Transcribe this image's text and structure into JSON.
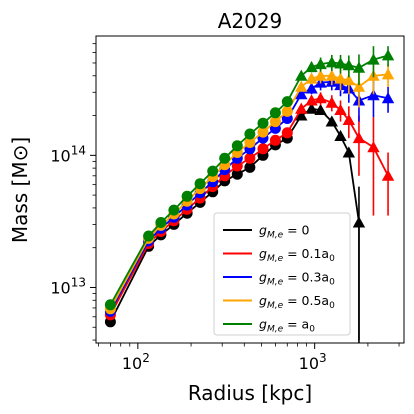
{
  "chart_data": {
    "type": "line",
    "title": "A2029",
    "xlabel": "Radius [kpc]",
    "ylabel": "Mass [M⊙]",
    "x_scale": "log",
    "y_scale": "log",
    "xlim": [
      58,
      3200
    ],
    "ylim": [
      3800000000000.0,
      800000000000000.0
    ],
    "x_ticks": [
      {
        "value": 100,
        "base": "10",
        "exp": "2"
      },
      {
        "value": 1000,
        "base": "10",
        "exp": "3"
      }
    ],
    "y_ticks": [
      {
        "value": 10000000000000.0,
        "base": "10",
        "exp": "13"
      },
      {
        "value": 100000000000000.0,
        "base": "10",
        "exp": "14"
      }
    ],
    "legend_position": "lower-right",
    "grid": false,
    "series": [
      {
        "name": "g_{M,e} = 0",
        "legend_main": "g",
        "legend_sub": "M,e",
        "legend_rest": " = 0",
        "color": "#000000",
        "x": [
          70,
          115,
          135,
          160,
          190,
          225,
          265,
          310,
          365,
          430,
          510,
          600,
          700
        ],
        "y": [
          5500000000000.0,
          20500000000000.0,
          25000000000000.0,
          30000000000000.0,
          36500000000000.0,
          44000000000000.0,
          53000000000000.0,
          64000000000000.0,
          72000000000000.0,
          81000000000000.0,
          100000000000000.0,
          120000000000000.0,
          135000000000000.0
        ],
        "y_err": [
          0,
          0,
          0,
          0,
          0,
          0,
          0,
          0,
          0,
          0,
          0,
          0,
          0
        ],
        "x2": [
          840,
          960,
          1080,
          1250,
          1400,
          1560,
          1780
        ],
        "y2": [
          200000000000000.0,
          225000000000000.0,
          220000000000000.0,
          180000000000000.0,
          140000000000000.0,
          105000000000000.0,
          31000000000000.0
        ],
        "y2_err": [
          0,
          0,
          0,
          0,
          0,
          0,
          27000000000000.0
        ]
      },
      {
        "name": "g_{M,e} = 0.1a_0",
        "legend_main": "g",
        "legend_sub": "M,e",
        "legend_rest": " = 0.1a",
        "legend_sub2": "0",
        "color": "#ff0000",
        "x": [
          70,
          115,
          135,
          160,
          190,
          225,
          265,
          310,
          365,
          430,
          510,
          600,
          700
        ],
        "y": [
          6200000000000.0,
          21500000000000.0,
          26500000000000.0,
          32000000000000.0,
          39000000000000.0,
          47500000000000.0,
          58000000000000.0,
          70000000000000.0,
          83000000000000.0,
          95000000000000.0,
          112000000000000.0,
          130000000000000.0,
          148000000000000.0
        ],
        "y_err": [
          0,
          0,
          0,
          0,
          0,
          0,
          0,
          0,
          0,
          0,
          0,
          0,
          0
        ],
        "x2": [
          840,
          960,
          1080,
          1250,
          1400,
          1560,
          1780,
          2150,
          2600
        ],
        "y2": [
          225000000000000.0,
          260000000000000.0,
          270000000000000.0,
          250000000000000.0,
          220000000000000.0,
          185000000000000.0,
          135000000000000.0,
          115000000000000.0,
          70000000000000.0
        ],
        "y2_err": [
          0,
          20000000000000.0,
          30000000000000.0,
          35000000000000.0,
          40000000000000.0,
          50000000000000.0,
          65000000000000.0,
          80000000000000.0,
          35000000000000.0
        ]
      },
      {
        "name": "g_{M,e} = 0.3a_0",
        "legend_main": "g",
        "legend_sub": "M,e",
        "legend_rest": " = 0.3a",
        "legend_sub2": "0",
        "color": "#0000ff",
        "x": [
          70,
          115,
          135,
          160,
          190,
          225,
          265,
          310,
          365,
          430,
          510,
          600,
          700
        ],
        "y": [
          6600000000000.0,
          22500000000000.0,
          28000000000000.0,
          34000000000000.0,
          42000000000000.0,
          52000000000000.0,
          63000000000000.0,
          78000000000000.0,
          95000000000000.0,
          112000000000000.0,
          135000000000000.0,
          160000000000000.0,
          190000000000000.0
        ],
        "y_err": [
          0,
          0,
          0,
          0,
          0,
          0,
          0,
          0,
          0,
          0,
          0,
          0,
          0
        ],
        "x2": [
          840,
          960,
          1080,
          1250,
          1400,
          1560,
          1780,
          2150,
          2600
        ],
        "y2": [
          290000000000000.0,
          320000000000000.0,
          355000000000000.0,
          360000000000000.0,
          340000000000000.0,
          320000000000000.0,
          260000000000000.0,
          285000000000000.0,
          270000000000000.0
        ],
        "y2_err": [
          0,
          30000000000000.0,
          45000000000000.0,
          50000000000000.0,
          60000000000000.0,
          70000000000000.0,
          80000000000000.0,
          90000000000000.0,
          60000000000000.0
        ]
      },
      {
        "name": "g_{M,e} = 0.5a_0",
        "legend_main": "g",
        "legend_sub": "M,e",
        "legend_rest": " = 0.5a",
        "legend_sub2": "0",
        "color": "#ffa500",
        "x": [
          70,
          115,
          135,
          160,
          190,
          225,
          265,
          310,
          365,
          430,
          510,
          600,
          700
        ],
        "y": [
          6900000000000.0,
          23500000000000.0,
          29500000000000.0,
          36000000000000.0,
          45000000000000.0,
          56000000000000.0,
          69000000000000.0,
          85000000000000.0,
          105000000000000.0,
          125000000000000.0,
          150000000000000.0,
          180000000000000.0,
          215000000000000.0
        ],
        "y_err": [
          0,
          0,
          0,
          0,
          0,
          0,
          0,
          0,
          0,
          0,
          0,
          0,
          0
        ],
        "x2": [
          840,
          960,
          1080,
          1250,
          1400,
          1560,
          1780,
          2150,
          2600
        ],
        "y2": [
          330000000000000.0,
          380000000000000.0,
          400000000000000.0,
          400000000000000.0,
          380000000000000.0,
          370000000000000.0,
          330000000000000.0,
          400000000000000.0,
          410000000000000.0
        ],
        "y2_err": [
          0,
          35000000000000.0,
          50000000000000.0,
          60000000000000.0,
          70000000000000.0,
          80000000000000.0,
          100000000000000.0,
          110000000000000.0,
          80000000000000.0
        ]
      },
      {
        "name": "g_{M,e} = a_0",
        "legend_main": "g",
        "legend_sub": "M,e",
        "legend_rest": " = a",
        "legend_sub2": "0",
        "color": "#008000",
        "x": [
          70,
          115,
          135,
          160,
          190,
          225,
          265,
          310,
          365,
          430,
          510,
          600,
          700
        ],
        "y": [
          7400000000000.0,
          24500000000000.0,
          31000000000000.0,
          38500000000000.0,
          49000000000000.0,
          61000000000000.0,
          76000000000000.0,
          95000000000000.0,
          118000000000000.0,
          145000000000000.0,
          175000000000000.0,
          210000000000000.0,
          255000000000000.0
        ],
        "y_err": [
          0,
          0,
          0,
          0,
          0,
          0,
          0,
          0,
          0,
          0,
          0,
          0,
          0
        ],
        "x2": [
          840,
          960,
          1080,
          1250,
          1400,
          1560,
          1780,
          2150,
          2600
        ],
        "y2": [
          400000000000000.0,
          465000000000000.0,
          490000000000000.0,
          505000000000000.0,
          495000000000000.0,
          480000000000000.0,
          460000000000000.0,
          530000000000000.0,
          570000000000000.0
        ],
        "y2_err": [
          0,
          40000000000000.0,
          60000000000000.0,
          70000000000000.0,
          80000000000000.0,
          90000000000000.0,
          120000000000000.0,
          140000000000000.0,
          100000000000000.0
        ]
      }
    ]
  }
}
